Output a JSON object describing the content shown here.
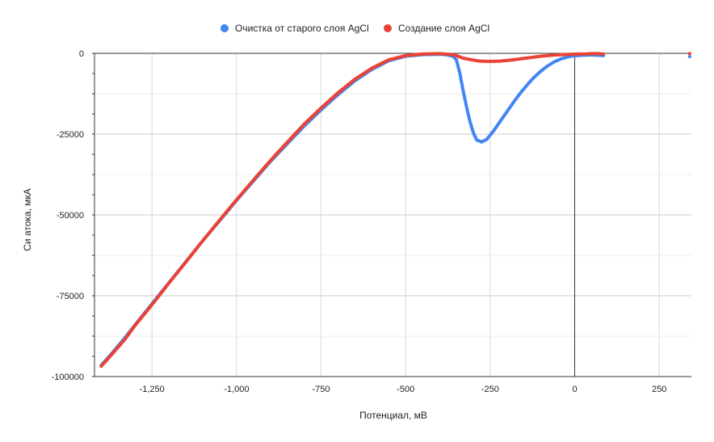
{
  "chart_data": {
    "type": "scatter",
    "title": "",
    "xlabel": "Потенциал, мВ",
    "ylabel": "Си атока, мкА",
    "xlim": [
      -1420,
      345
    ],
    "ylim": [
      -100000,
      0
    ],
    "x_ticks": [
      -1250,
      -1000,
      -750,
      -500,
      -250,
      0,
      250
    ],
    "x_tick_labels": [
      "-1,250",
      "-1,000",
      "-750",
      "-500",
      "-250",
      "0",
      "250"
    ],
    "y_ticks": [
      0,
      -25000,
      -50000,
      -75000,
      -100000
    ],
    "y_tick_labels": [
      "0",
      "-25000",
      "-50000",
      "-75000",
      "-100000"
    ],
    "grid": true,
    "legend_position": "top",
    "series": [
      {
        "name": "Очистка от старого слоя AgCl",
        "color": "#4285F4",
        "points": [
          [
            -1400,
            -96500
          ],
          [
            -1370,
            -93000
          ],
          [
            -1330,
            -88000
          ],
          [
            -1300,
            -84000
          ],
          [
            -1250,
            -77500
          ],
          [
            -1200,
            -71000
          ],
          [
            -1150,
            -64500
          ],
          [
            -1100,
            -58000
          ],
          [
            -1050,
            -51800
          ],
          [
            -1000,
            -45500
          ],
          [
            -950,
            -39500
          ],
          [
            -900,
            -33500
          ],
          [
            -850,
            -28000
          ],
          [
            -800,
            -22500
          ],
          [
            -750,
            -17500
          ],
          [
            -700,
            -12800
          ],
          [
            -650,
            -8500
          ],
          [
            -600,
            -5000
          ],
          [
            -550,
            -2300
          ],
          [
            -500,
            -900
          ],
          [
            -450,
            -400
          ],
          [
            -400,
            -300
          ],
          [
            -380,
            -400
          ],
          [
            -360,
            -900
          ],
          [
            -350,
            -2000
          ],
          [
            -340,
            -6000
          ],
          [
            -330,
            -11500
          ],
          [
            -320,
            -16500
          ],
          [
            -310,
            -21000
          ],
          [
            -300,
            -24500
          ],
          [
            -290,
            -26800
          ],
          [
            -275,
            -27400
          ],
          [
            -260,
            -26600
          ],
          [
            -240,
            -24000
          ],
          [
            -220,
            -21000
          ],
          [
            -200,
            -18000
          ],
          [
            -180,
            -15000
          ],
          [
            -160,
            -12200
          ],
          [
            -140,
            -9700
          ],
          [
            -120,
            -7400
          ],
          [
            -100,
            -5500
          ],
          [
            -80,
            -3900
          ],
          [
            -60,
            -2600
          ],
          [
            -40,
            -1700
          ],
          [
            -20,
            -1100
          ],
          [
            -5,
            -800
          ],
          [
            20,
            -600
          ],
          [
            50,
            -500
          ],
          [
            85,
            -700
          ],
          [
            340,
            -1000
          ]
        ]
      },
      {
        "name": "Создание слоя AgCl",
        "color": "#EA4335",
        "points": [
          [
            -1400,
            -96800
          ],
          [
            -1370,
            -93300
          ],
          [
            -1330,
            -88500
          ],
          [
            -1300,
            -84200
          ],
          [
            -1250,
            -77800
          ],
          [
            -1200,
            -71100
          ],
          [
            -1150,
            -64600
          ],
          [
            -1100,
            -58000
          ],
          [
            -1050,
            -51600
          ],
          [
            -1000,
            -45300
          ],
          [
            -950,
            -39200
          ],
          [
            -900,
            -33200
          ],
          [
            -850,
            -27500
          ],
          [
            -800,
            -21900
          ],
          [
            -750,
            -16900
          ],
          [
            -700,
            -12200
          ],
          [
            -650,
            -8000
          ],
          [
            -600,
            -4600
          ],
          [
            -550,
            -2000
          ],
          [
            -500,
            -700
          ],
          [
            -450,
            -200
          ],
          [
            -400,
            -100
          ],
          [
            -370,
            -300
          ],
          [
            -350,
            -700
          ],
          [
            -330,
            -1500
          ],
          [
            -300,
            -2100
          ],
          [
            -280,
            -2400
          ],
          [
            -250,
            -2500
          ],
          [
            -220,
            -2400
          ],
          [
            -190,
            -2100
          ],
          [
            -160,
            -1700
          ],
          [
            -130,
            -1300
          ],
          [
            -100,
            -900
          ],
          [
            -70,
            -600
          ],
          [
            -40,
            -400
          ],
          [
            -10,
            -300
          ],
          [
            10,
            -200
          ],
          [
            30,
            -200
          ],
          [
            50,
            -100
          ],
          [
            70,
            -100
          ],
          [
            85,
            -200
          ],
          [
            340,
            -100
          ]
        ]
      }
    ]
  }
}
